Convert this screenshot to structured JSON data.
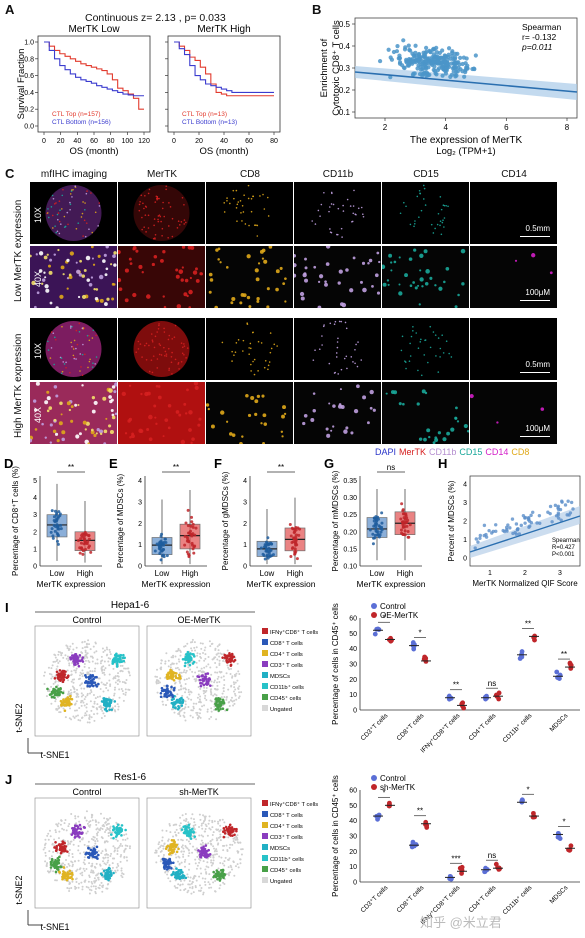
{
  "panels": {
    "A": {
      "letter": "A",
      "header": "Continuous z= 2.13 , p= 0.033",
      "sub": [
        {
          "title": "MerTK Low",
          "legend": [
            "CTL Top (n=157)",
            "CTL Bottom (n=156)"
          ],
          "xticks": [
            "0",
            "20",
            "40",
            "60",
            "80",
            "100",
            "120"
          ]
        },
        {
          "title": "MerTK High",
          "legend": [
            "CTL Top (n=13)",
            "CTL Bottom (n=13)"
          ],
          "xticks": [
            "0",
            "20",
            "40",
            "60",
            "80"
          ]
        }
      ],
      "ylabel": "Survival Fraction",
      "yticks": [
        "0.0",
        "0.2",
        "0.4",
        "0.6",
        "0.8",
        "1.0"
      ],
      "xlabel": "OS (month)"
    },
    "B": {
      "letter": "B",
      "ylabel1": "Enrichment of",
      "ylabel2": "Cytotoxic CD8⁺ T cells",
      "xlabel1": "The expression of MerTK",
      "xlabel2": "Log₂ (TPM+1)",
      "stat1": "Spearman",
      "stat2": "r= -0.132",
      "stat3": "p=0.011",
      "yticks": [
        "0.1",
        "0.2",
        "0.3",
        "0.4",
        "0.5"
      ],
      "xticks": [
        "2",
        "4",
        "6",
        "8"
      ]
    },
    "C": {
      "letter": "C",
      "columns": [
        "mfIHC imaging",
        "MerTK",
        "CD8",
        "CD11b",
        "CD15",
        "CD14"
      ],
      "rows": [
        "10X",
        "40X",
        "10X",
        "40X"
      ],
      "groups": [
        "Low MerTK expression",
        "High MerTK expression"
      ],
      "scales": [
        "0.5mm",
        "100μM",
        "0.5mm",
        "100μM"
      ],
      "legend": [
        {
          "text": "DAPI",
          "color": "#2a35c9"
        },
        {
          "text": "MerTK",
          "color": "#d62020"
        },
        {
          "text": "CD11b",
          "color": "#b58fd0"
        },
        {
          "text": "CD15",
          "color": "#1aa89a"
        },
        {
          "text": "CD14",
          "color": "#d31ec8"
        },
        {
          "text": "CD8",
          "color": "#e0a91a"
        }
      ]
    },
    "D": {
      "letter": "D",
      "ylabel": "Percentage of CD8⁺T cells (%)",
      "yticks": [
        "0",
        "1",
        "2",
        "3",
        "4",
        "5"
      ],
      "sig": "**"
    },
    "E": {
      "letter": "E",
      "ylabel": "Percentage of MDSCs (%)",
      "yticks": [
        "0",
        "1",
        "2",
        "3",
        "4"
      ],
      "sig": "**"
    },
    "F": {
      "letter": "F",
      "ylabel": "Percentage of gMDSCs (%)",
      "yticks": [
        "0",
        "1",
        "2",
        "3",
        "4"
      ],
      "sig": "**"
    },
    "G": {
      "letter": "G",
      "ylabel": "Percentage of mMDSCs (%)",
      "yticks": [
        "0.10",
        "0.15",
        "0.20",
        "0.25",
        "0.30",
        "0.35"
      ],
      "sig": "ns"
    },
    "DEFG_common": {
      "categories": [
        "Low",
        "High"
      ],
      "xlabel": "MerTK expression"
    },
    "H": {
      "letter": "H",
      "ylabel": "Percent of MDSCs (%)",
      "xlabel": "MerTK Normalized QIF Score",
      "stat1": "Spearman",
      "stat2": "R=0.427",
      "stat3": "P<0.001",
      "yticks": [
        "0",
        "1",
        "2",
        "3",
        "4"
      ],
      "xticks": [
        "1",
        "2",
        "3"
      ]
    },
    "I": {
      "letter": "I",
      "title": "Hepa1-6",
      "maps": [
        "Control",
        "OE-MerTK"
      ],
      "legend": [
        "IFNγ⁺CD8⁺ T cells",
        "CD8⁺ T cells",
        "CD4⁺ T cells",
        "CD3⁺ T cells",
        "MDSCs",
        "CD11b⁺ cells",
        "CD45⁺ cells",
        "Ungated"
      ],
      "groups": [
        "Control",
        "OE-MerTK"
      ],
      "ylabel": "Percentage of cells in CD45⁺ cells",
      "yticks": [
        "0",
        "10",
        "20",
        "30",
        "40",
        "50",
        "60"
      ],
      "categories": [
        "CD3⁺T cells",
        "CD8⁺T cells",
        "IFNγ⁺CD8⁺T cells",
        "CD4⁺T cells",
        "CD11b⁺ cells",
        "MDSCs"
      ],
      "sigs": [
        "*",
        "*",
        "**",
        "ns",
        "**",
        "**"
      ]
    },
    "J": {
      "letter": "J",
      "title": "Res1-6",
      "maps": [
        "Control",
        "sh-MerTK"
      ],
      "legend": [
        "IFNγ⁺CD8⁺ T cells",
        "CD8⁺ T cells",
        "CD4⁺ T cells",
        "CD3⁺ T cells",
        "MDSCs",
        "CD11b⁺ cells",
        "CD45⁺ cells",
        "Ungated"
      ],
      "groups": [
        "Control",
        "sh-MerTK"
      ],
      "ylabel": "Percentage of cells in CD45⁺ cells",
      "yticks": [
        "0",
        "10",
        "20",
        "30",
        "40",
        "50",
        "60"
      ],
      "categories": [
        "CD3⁺T cells",
        "CD8⁺T cells",
        "IFNγ⁺CD8⁺T cells",
        "CD4⁺T cells",
        "CD11b⁺ cells",
        "MDSCs"
      ],
      "sigs": [
        "*",
        "**",
        "***",
        "ns",
        "*",
        "*"
      ]
    },
    "tsne_axes": {
      "y": "t-SNE2",
      "x": "t-SNE1"
    },
    "watermark": "知乎 @米立君"
  },
  "colors": {
    "control": "#5b6fd6",
    "treated": "#c0262a",
    "box_blue": "#5b8ec9",
    "box_red": "#e2504f",
    "km_red": "#e23b2e",
    "km_blue": "#3b3ccf"
  },
  "chart_data": [
    {
      "type": "bar",
      "title": "Hepa1-6",
      "categories": [
        "CD3⁺T cells",
        "CD8⁺T cells",
        "IFNγ⁺CD8⁺T cells",
        "CD4⁺T cells",
        "CD11b⁺ cells",
        "MDSCs"
      ],
      "series": [
        {
          "name": "Control",
          "values": [
            52,
            42,
            8,
            8,
            36,
            22
          ]
        },
        {
          "name": "OE-MerTK",
          "values": [
            46,
            32,
            3,
            9,
            48,
            28
          ]
        }
      ],
      "ylabel": "Percentage of cells in CD45⁺ cells",
      "ylim": [
        0,
        60
      ]
    },
    {
      "type": "bar",
      "title": "Res1-6",
      "categories": [
        "CD3⁺T cells",
        "CD8⁺T cells",
        "IFNγ⁺CD8⁺T cells",
        "CD4⁺T cells",
        "CD11b⁺ cells",
        "MDSCs"
      ],
      "series": [
        {
          "name": "Control",
          "values": [
            43,
            24,
            3,
            8,
            52,
            31
          ]
        },
        {
          "name": "sh-MerTK",
          "values": [
            50,
            38,
            7,
            9,
            43,
            22
          ]
        }
      ],
      "ylabel": "Percentage of cells in CD45⁺ cells",
      "ylim": [
        0,
        60
      ]
    },
    {
      "type": "box",
      "title": "",
      "panels": [
        {
          "categories": [
            "Low",
            "High"
          ],
          "median": [
            2.4,
            1.5
          ],
          "ylim": [
            0,
            5
          ]
        },
        {
          "categories": [
            "Low",
            "High"
          ],
          "median": [
            1.1,
            1.6
          ],
          "ylim": [
            0,
            4.5
          ]
        },
        {
          "categories": [
            "Low",
            "High"
          ],
          "median": [
            0.9,
            1.4
          ],
          "ylim": [
            0,
            4.5
          ]
        },
        {
          "categories": [
            "Low",
            "High"
          ],
          "median": [
            0.21,
            0.23
          ],
          "ylim": [
            0.08,
            0.38
          ]
        }
      ]
    }
  ]
}
